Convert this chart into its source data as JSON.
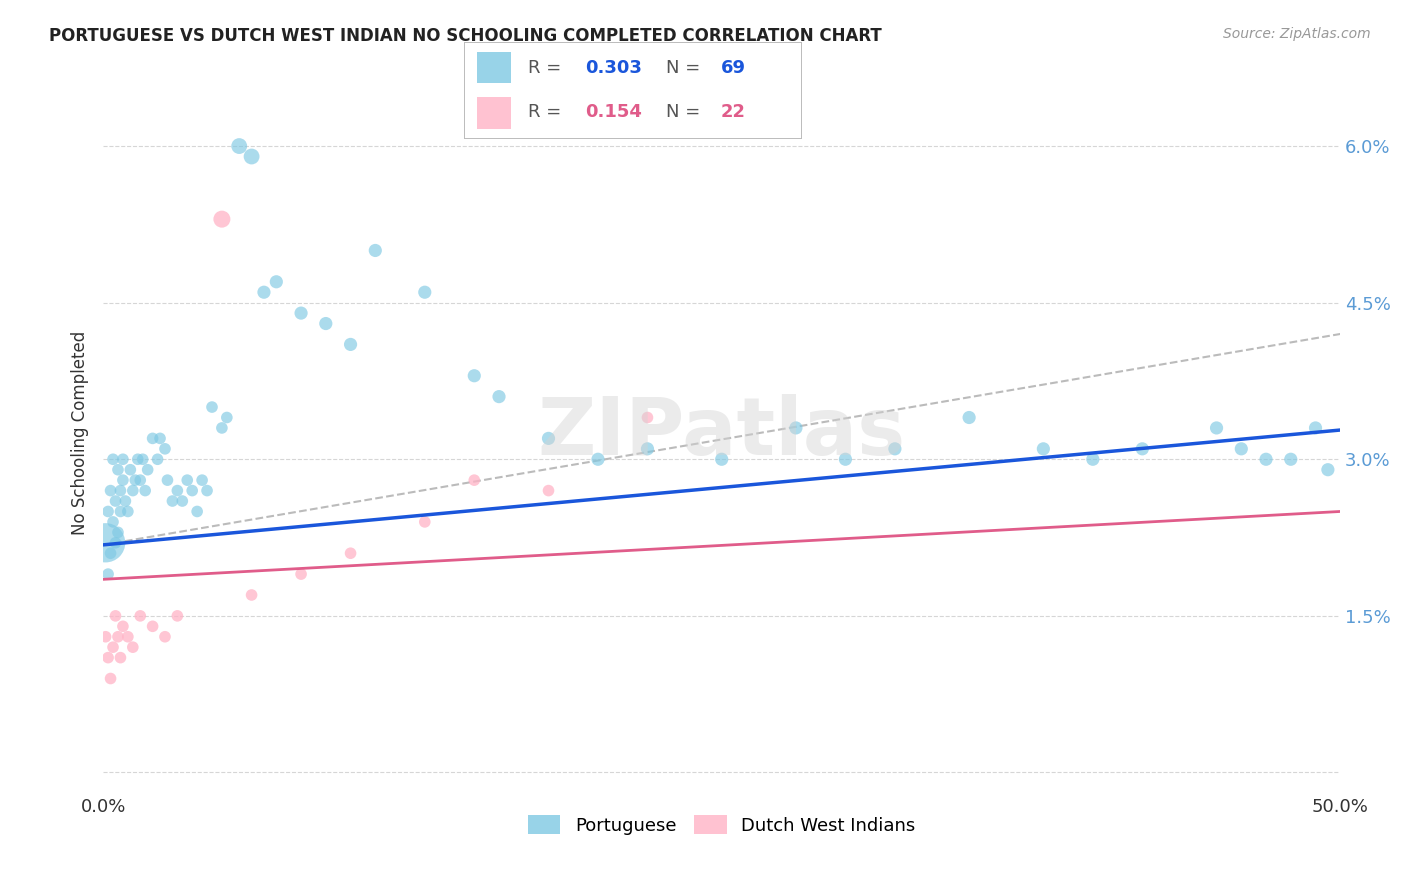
{
  "title": "PORTUGUESE VS DUTCH WEST INDIAN NO SCHOOLING COMPLETED CORRELATION CHART",
  "source": "Source: ZipAtlas.com",
  "ylabel": "No Schooling Completed",
  "ytick_vals": [
    0.0,
    0.015,
    0.03,
    0.045,
    0.06
  ],
  "ytick_labels": [
    "",
    "1.5%",
    "3.0%",
    "4.5%",
    "6.0%"
  ],
  "xlim": [
    0.0,
    0.5
  ],
  "ylim": [
    -0.002,
    0.067
  ],
  "xtick_vals": [
    0.0,
    0.1,
    0.2,
    0.3,
    0.4,
    0.5
  ],
  "xtick_labels": [
    "0.0%",
    "",
    "",
    "",
    "",
    "50.0%"
  ],
  "watermark": "ZIPatlas",
  "blue_scatter_color": "#7ec8e3",
  "pink_scatter_color": "#ffb3c6",
  "line_blue_color": "#1a56db",
  "line_pink_color": "#e05c8a",
  "line_dashed_color": "#bbbbbb",
  "title_color": "#222222",
  "tick_color": "#5b9bd5",
  "grid_color": "#cccccc",
  "legend_r1": "0.303",
  "legend_n1": "69",
  "legend_r2": "0.154",
  "legend_n2": "22",
  "blue_line_start_y": 0.0218,
  "blue_line_end_y": 0.0328,
  "pink_line_start_y": 0.0185,
  "pink_line_end_y": 0.025,
  "dashed_line_start_y": 0.0218,
  "dashed_line_end_y": 0.042,
  "port_x": [
    0.001,
    0.002,
    0.002,
    0.003,
    0.003,
    0.004,
    0.004,
    0.005,
    0.005,
    0.006,
    0.006,
    0.007,
    0.007,
    0.008,
    0.008,
    0.009,
    0.01,
    0.011,
    0.012,
    0.013,
    0.014,
    0.015,
    0.016,
    0.017,
    0.018,
    0.02,
    0.022,
    0.023,
    0.025,
    0.026,
    0.028,
    0.03,
    0.032,
    0.034,
    0.036,
    0.038,
    0.04,
    0.042,
    0.044,
    0.048,
    0.05,
    0.055,
    0.06,
    0.065,
    0.07,
    0.08,
    0.09,
    0.1,
    0.11,
    0.13,
    0.15,
    0.16,
    0.18,
    0.2,
    0.22,
    0.25,
    0.28,
    0.3,
    0.32,
    0.35,
    0.38,
    0.4,
    0.42,
    0.45,
    0.46,
    0.47,
    0.48,
    0.49,
    0.495
  ],
  "port_y": [
    0.022,
    0.025,
    0.019,
    0.027,
    0.021,
    0.024,
    0.03,
    0.026,
    0.022,
    0.029,
    0.023,
    0.027,
    0.025,
    0.03,
    0.028,
    0.026,
    0.025,
    0.029,
    0.027,
    0.028,
    0.03,
    0.028,
    0.03,
    0.027,
    0.029,
    0.032,
    0.03,
    0.032,
    0.031,
    0.028,
    0.026,
    0.027,
    0.026,
    0.028,
    0.027,
    0.025,
    0.028,
    0.027,
    0.035,
    0.033,
    0.034,
    0.06,
    0.059,
    0.046,
    0.047,
    0.044,
    0.043,
    0.041,
    0.05,
    0.046,
    0.038,
    0.036,
    0.032,
    0.03,
    0.031,
    0.03,
    0.033,
    0.03,
    0.031,
    0.034,
    0.031,
    0.03,
    0.031,
    0.033,
    0.031,
    0.03,
    0.03,
    0.033,
    0.029
  ],
  "port_s": [
    80,
    70,
    70,
    70,
    70,
    70,
    70,
    70,
    70,
    70,
    70,
    70,
    70,
    70,
    70,
    70,
    70,
    70,
    70,
    70,
    70,
    70,
    70,
    70,
    70,
    70,
    70,
    70,
    70,
    70,
    70,
    70,
    70,
    70,
    70,
    70,
    70,
    70,
    70,
    70,
    70,
    130,
    130,
    90,
    90,
    90,
    90,
    90,
    90,
    90,
    90,
    90,
    90,
    90,
    90,
    90,
    90,
    90,
    90,
    90,
    90,
    90,
    90,
    90,
    90,
    90,
    90,
    90,
    90
  ],
  "port_big_idx": 0,
  "port_big_s": 800,
  "dutch_x": [
    0.001,
    0.002,
    0.003,
    0.004,
    0.005,
    0.006,
    0.007,
    0.008,
    0.01,
    0.012,
    0.015,
    0.02,
    0.025,
    0.03,
    0.048,
    0.06,
    0.08,
    0.1,
    0.13,
    0.15,
    0.18,
    0.22
  ],
  "dutch_y": [
    0.013,
    0.011,
    0.009,
    0.012,
    0.015,
    0.013,
    0.011,
    0.014,
    0.013,
    0.012,
    0.015,
    0.014,
    0.013,
    0.015,
    0.053,
    0.017,
    0.019,
    0.021,
    0.024,
    0.028,
    0.027,
    0.034
  ],
  "dutch_s": [
    70,
    70,
    70,
    70,
    70,
    70,
    70,
    70,
    70,
    70,
    70,
    70,
    70,
    70,
    150,
    70,
    70,
    70,
    70,
    70,
    70,
    70
  ]
}
